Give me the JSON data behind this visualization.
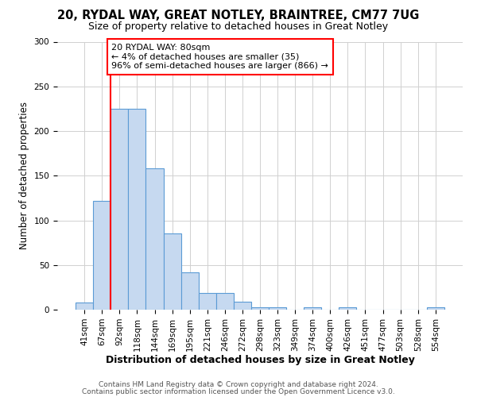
{
  "title1": "20, RYDAL WAY, GREAT NOTLEY, BRAINTREE, CM77 7UG",
  "title2": "Size of property relative to detached houses in Great Notley",
  "xlabel": "Distribution of detached houses by size in Great Notley",
  "ylabel": "Number of detached properties",
  "categories": [
    "41sqm",
    "67sqm",
    "92sqm",
    "118sqm",
    "144sqm",
    "169sqm",
    "195sqm",
    "221sqm",
    "246sqm",
    "272sqm",
    "298sqm",
    "323sqm",
    "349sqm",
    "374sqm",
    "400sqm",
    "426sqm",
    "451sqm",
    "477sqm",
    "503sqm",
    "528sqm",
    "554sqm"
  ],
  "values": [
    8,
    122,
    225,
    225,
    158,
    85,
    42,
    19,
    19,
    9,
    3,
    3,
    0,
    3,
    0,
    3,
    0,
    0,
    0,
    0,
    3
  ],
  "bar_color": "#c6d9f0",
  "bar_edge_color": "#5b9bd5",
  "bar_width": 1.0,
  "ylim": [
    0,
    300
  ],
  "yticks": [
    0,
    50,
    100,
    150,
    200,
    250,
    300
  ],
  "annotation_text": "20 RYDAL WAY: 80sqm\n← 4% of detached houses are smaller (35)\n96% of semi-detached houses are larger (866) →",
  "footer1": "Contains HM Land Registry data © Crown copyright and database right 2024.",
  "footer2": "Contains public sector information licensed under the Open Government Licence v3.0.",
  "background_color": "#ffffff",
  "grid_color": "#d0d0d0",
  "title1_fontsize": 10.5,
  "title2_fontsize": 9,
  "xlabel_fontsize": 9,
  "ylabel_fontsize": 8.5,
  "tick_fontsize": 7.5,
  "annotation_fontsize": 8,
  "footer_fontsize": 6.5
}
